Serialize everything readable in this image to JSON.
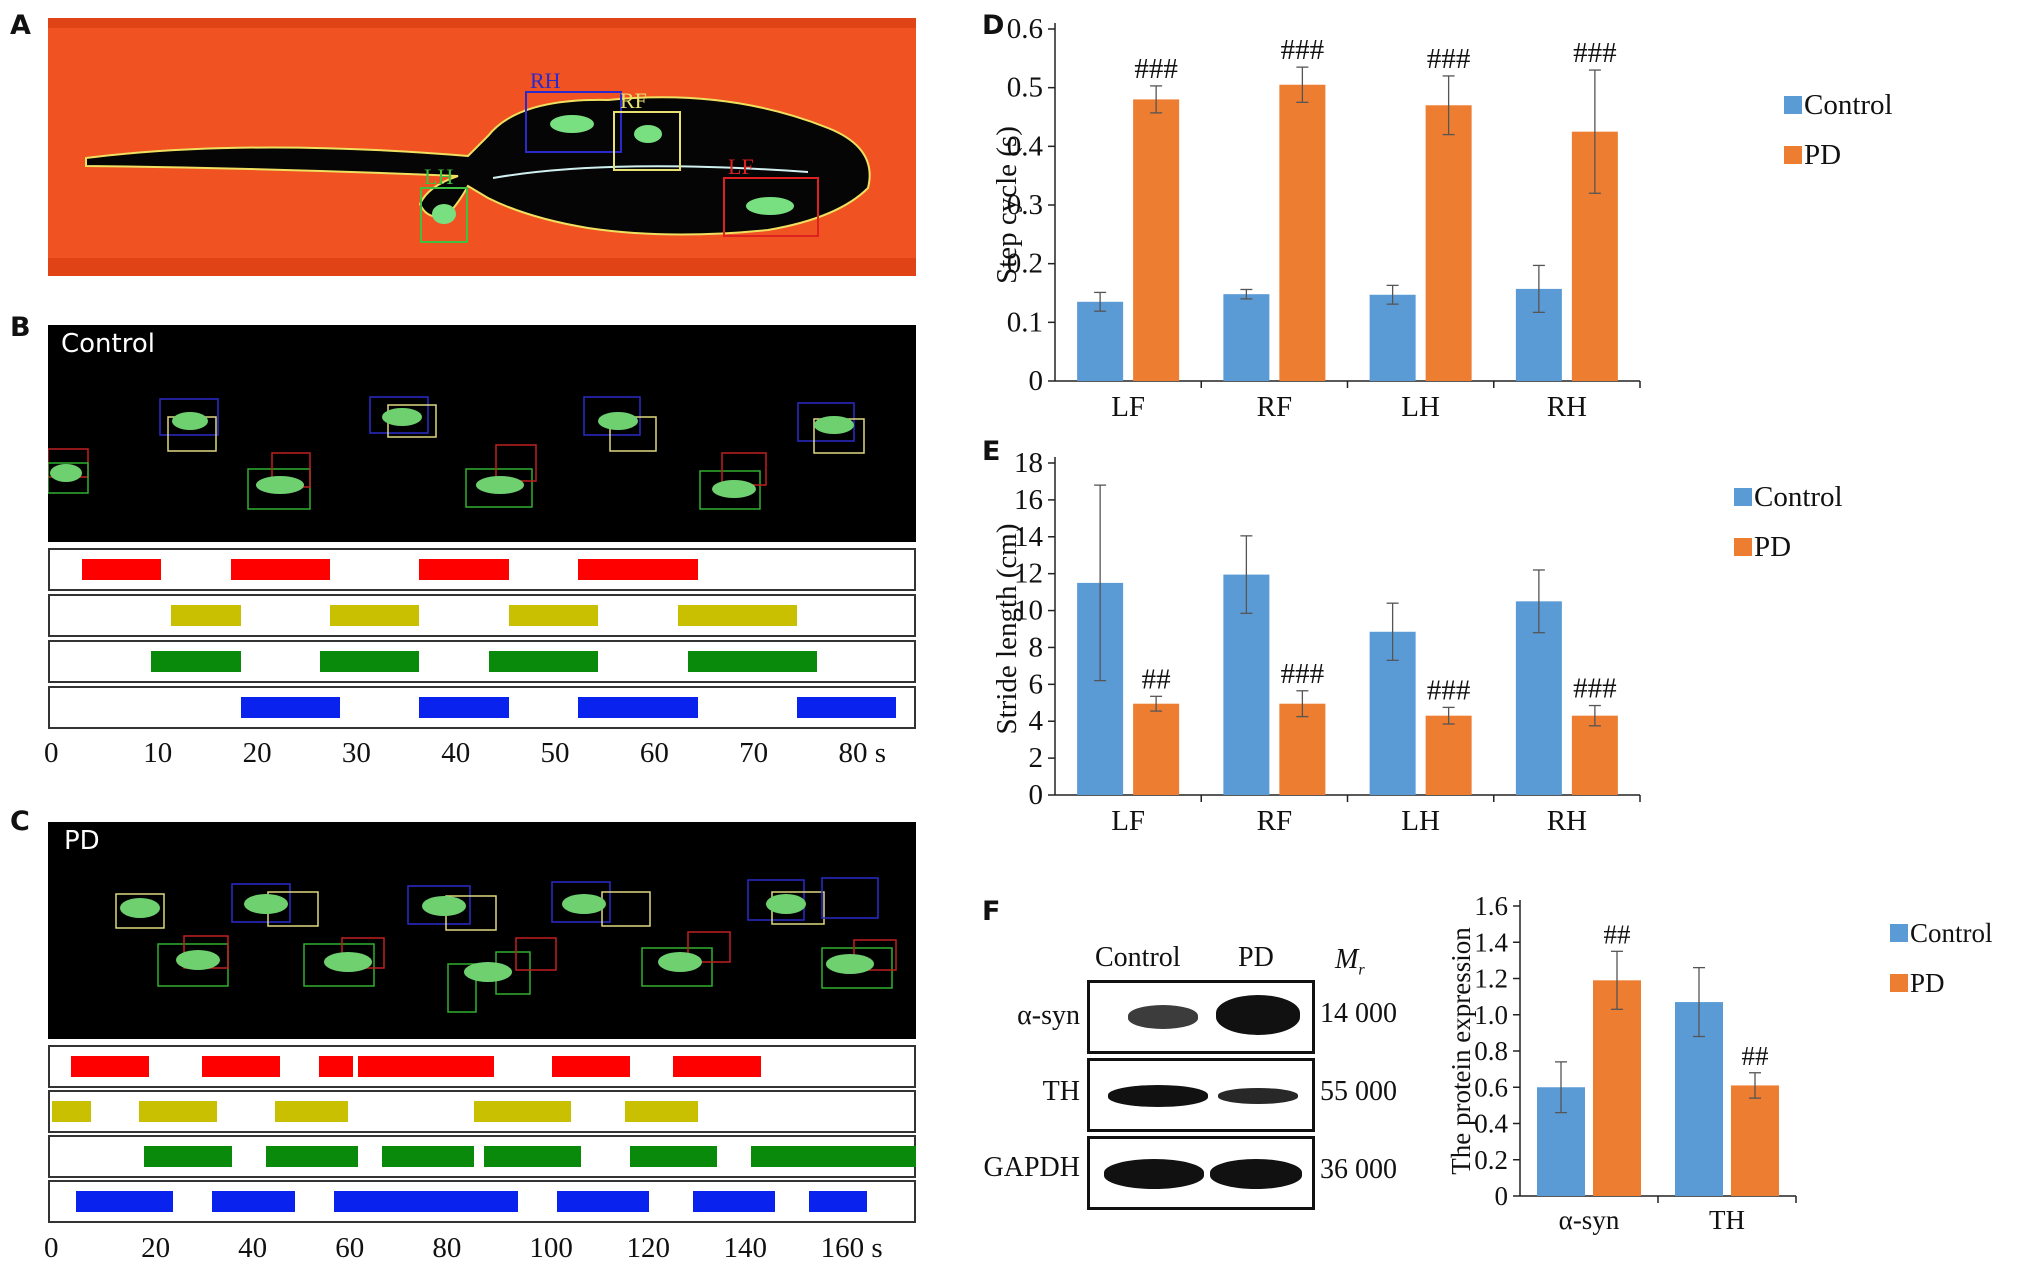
{
  "panels": {
    "a": {
      "letter": "A",
      "paw_labels": [
        "RH",
        "RF",
        "LH",
        "LF"
      ]
    },
    "b": {
      "letter": "B",
      "group_label": "Control"
    },
    "c": {
      "letter": "C",
      "group_label": "PD"
    },
    "d": {
      "letter": "D"
    },
    "e": {
      "letter": "E"
    },
    "f": {
      "letter": "F"
    }
  },
  "colors": {
    "control": "#5b9bd5",
    "pd": "#ed7d31",
    "track_red": "#ff0000",
    "track_yellow": "#c8c000",
    "track_green": "#0a8a0a",
    "track_blue": "#0a22ee",
    "walkway": "#f04a18"
  },
  "gait_b": {
    "x_ticks": [
      "0",
      "10",
      "20",
      "30",
      "40",
      "50",
      "60",
      "70",
      "80 s"
    ],
    "x_max": 87,
    "tracks": [
      {
        "color": "#ff0000",
        "segments": [
          [
            3,
            11
          ],
          [
            18,
            28
          ],
          [
            37,
            46
          ],
          [
            53,
            65
          ]
        ]
      },
      {
        "color": "#c8c000",
        "segments": [
          [
            12,
            19
          ],
          [
            28,
            37
          ],
          [
            46,
            55
          ],
          [
            63,
            75
          ]
        ]
      },
      {
        "color": "#0a8a0a",
        "segments": [
          [
            10,
            19
          ],
          [
            27,
            37
          ],
          [
            44,
            55
          ],
          [
            64,
            77
          ]
        ]
      },
      {
        "color": "#0a22ee",
        "segments": [
          [
            19,
            29
          ],
          [
            37,
            46
          ],
          [
            53,
            65
          ],
          [
            75,
            85
          ]
        ]
      }
    ]
  },
  "gait_c": {
    "x_ticks": [
      "0",
      "20",
      "40",
      "60",
      "80",
      "100",
      "120",
      "140",
      "160 s"
    ],
    "x_max": 178,
    "tracks": [
      {
        "color": "#ff0000",
        "segments": [
          [
            4,
            20
          ],
          [
            31,
            47
          ],
          [
            55,
            62
          ],
          [
            63,
            91
          ],
          [
            103,
            119
          ],
          [
            128,
            146
          ]
        ]
      },
      {
        "color": "#c8c000",
        "segments": [
          [
            0,
            8
          ],
          [
            18,
            34
          ],
          [
            46,
            61
          ],
          [
            87,
            107
          ],
          [
            118,
            133
          ]
        ]
      },
      {
        "color": "#0a8a0a",
        "segments": [
          [
            19,
            37
          ],
          [
            44,
            63
          ],
          [
            68,
            87
          ],
          [
            89,
            109
          ],
          [
            119,
            137
          ],
          [
            144,
            178
          ]
        ]
      },
      {
        "color": "#0a22ee",
        "segments": [
          [
            5,
            25
          ],
          [
            33,
            50
          ],
          [
            58,
            96
          ],
          [
            104,
            123
          ],
          [
            132,
            149
          ],
          [
            156,
            168
          ]
        ]
      }
    ]
  },
  "chart_data": [
    {
      "type": "bar",
      "panel": "D",
      "categories": [
        "LF",
        "RF",
        "LH",
        "RH"
      ],
      "ylabel": "Step cycle (s)",
      "ylim": [
        0,
        0.6
      ],
      "yticks": [
        "0",
        "0.1",
        "0.2",
        "0.3",
        "0.4",
        "0.5",
        "0.6"
      ],
      "legend": "right",
      "series": [
        {
          "name": "Control",
          "values": [
            0.135,
            0.148,
            0.147,
            0.157
          ],
          "errors": [
            0.016,
            0.008,
            0.016,
            0.04
          ]
        },
        {
          "name": "PD",
          "values": [
            0.48,
            0.505,
            0.47,
            0.425
          ],
          "errors": [
            0.023,
            0.03,
            0.05,
            0.105
          ]
        }
      ],
      "annotations": [
        "###",
        "###",
        "###",
        "###"
      ],
      "annotation_series": 1
    },
    {
      "type": "bar",
      "panel": "E",
      "categories": [
        "LF",
        "RF",
        "LH",
        "RH"
      ],
      "ylabel": "Stride length (cm)",
      "ylim": [
        0,
        18
      ],
      "yticks": [
        "0",
        "2",
        "4",
        "6",
        "8",
        "10",
        "12",
        "14",
        "16",
        "18"
      ],
      "legend": "right",
      "series": [
        {
          "name": "Control",
          "values": [
            11.5,
            11.95,
            8.85,
            10.5
          ],
          "errors": [
            5.3,
            2.1,
            1.55,
            1.7
          ]
        },
        {
          "name": "PD",
          "values": [
            4.95,
            4.95,
            4.3,
            4.3
          ],
          "errors": [
            0.4,
            0.7,
            0.45,
            0.55
          ]
        }
      ],
      "annotations": [
        "##",
        "###",
        "###",
        "###"
      ],
      "annotation_series": 1
    },
    {
      "type": "bar",
      "panel": "F",
      "categories": [
        "α-syn",
        "TH"
      ],
      "ylabel": "The protein expression",
      "ylim": [
        0,
        1.6
      ],
      "yticks": [
        "0",
        "0.2",
        "0.4",
        "0.6",
        "0.8",
        "1.0",
        "1.2",
        "1.4",
        "1.6"
      ],
      "legend": "right",
      "series": [
        {
          "name": "Control",
          "values": [
            0.6,
            1.07
          ],
          "errors": [
            0.14,
            0.19
          ]
        },
        {
          "name": "PD",
          "values": [
            1.19,
            0.61
          ],
          "errors": [
            0.16,
            0.07
          ]
        }
      ],
      "annotations": [
        "##",
        "##"
      ],
      "annotation_series": 1
    }
  ],
  "blot": {
    "lane_labels": [
      "Control",
      "PD"
    ],
    "mr_label": "M",
    "mr_sub": "r",
    "rows": [
      {
        "protein": "α-syn",
        "mr": "14 000"
      },
      {
        "protein": "TH",
        "mr": "55 000"
      },
      {
        "protein": "GAPDH",
        "mr": "36 000"
      }
    ]
  }
}
